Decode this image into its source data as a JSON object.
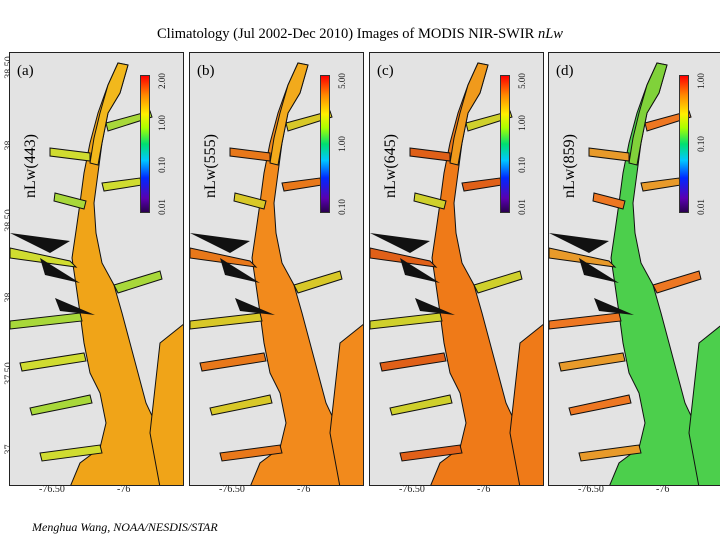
{
  "title_main": "Climatology (Jul 2002-Dec 2010) Images of MODIS NIR-SWIR ",
  "title_var": "nLw",
  "lat_ticks": [
    "38.50",
    "38",
    "38.50",
    "38",
    "37.50",
    "37"
  ],
  "lon_ticks": [
    "-76.50",
    "-76"
  ],
  "colors": {
    "land": "#e3e3e3",
    "coast": "#111111"
  },
  "panels": [
    {
      "label": "(a)",
      "param": "nLw(443)",
      "ticks": [
        "2.00",
        "1.00",
        "0.10",
        "0.01"
      ],
      "water_colors": {
        "main": "#f0a418",
        "upper": "#f2b81c",
        "tributary": "#d0dc30",
        "edge": "#a8d83a"
      }
    },
    {
      "label": "(b)",
      "param": "nLw(555)",
      "ticks": [
        "5.00",
        "1.00",
        "0.10"
      ],
      "water_colors": {
        "main": "#f28a1c",
        "upper": "#f2aa1c",
        "tributary": "#e8781a",
        "edge": "#d8c828"
      }
    },
    {
      "label": "(c)",
      "param": "nLw(645)",
      "ticks": [
        "5.00",
        "1.00",
        "0.10",
        "0.01"
      ],
      "water_colors": {
        "main": "#ef7a18",
        "upper": "#f09a1c",
        "tributary": "#e06018",
        "edge": "#cfd02c"
      }
    },
    {
      "label": "(d)",
      "param": "nLw(859)",
      "ticks": [
        "1.00",
        "0.10",
        "0.01"
      ],
      "water_colors": {
        "main": "#4ccf4c",
        "upper": "#80d23a",
        "tributary": "#e89a2a",
        "edge": "#ee7722"
      }
    }
  ],
  "footer": "Menghua Wang, NOAA/NESDIS/STAR"
}
